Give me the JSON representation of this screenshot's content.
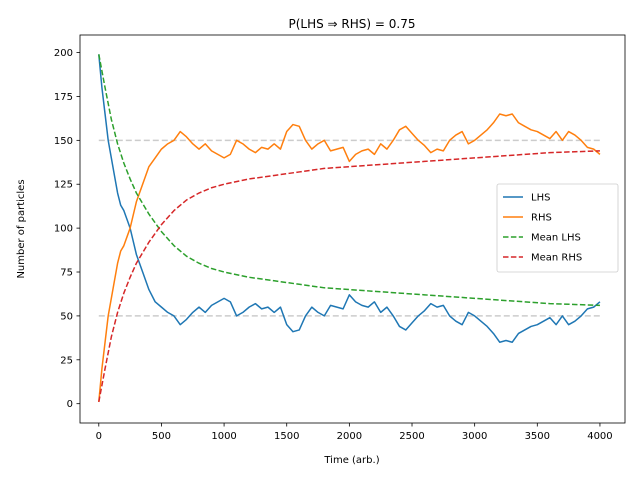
{
  "chart_data": {
    "type": "line",
    "title": "P(LHS ⇒ RHS) = 0.75",
    "xlabel": "Time (arb.)",
    "ylabel": "Number of particles",
    "xlim": [
      -150,
      4200
    ],
    "ylim": [
      -11,
      210
    ],
    "xticks": [
      0,
      500,
      1000,
      1500,
      2000,
      2500,
      3000,
      3500,
      4000
    ],
    "yticks": [
      0,
      25,
      50,
      75,
      100,
      125,
      150,
      175,
      200
    ],
    "grid": false,
    "legend_position": "center-right",
    "reference_lines": [
      {
        "y": 150,
        "x_range": [
          0,
          4000
        ],
        "color": "#cccccc",
        "style": "dashed"
      },
      {
        "y": 50,
        "x_range": [
          0,
          4000
        ],
        "color": "#cccccc",
        "style": "dashed"
      }
    ],
    "series": [
      {
        "name": "LHS",
        "color": "#1f77b4",
        "style": "solid",
        "x": [
          0,
          25,
          50,
          75,
          100,
          125,
          150,
          175,
          200,
          250,
          300,
          350,
          400,
          450,
          500,
          550,
          600,
          650,
          700,
          750,
          800,
          850,
          900,
          950,
          1000,
          1050,
          1100,
          1150,
          1200,
          1250,
          1300,
          1350,
          1400,
          1450,
          1500,
          1550,
          1600,
          1650,
          1700,
          1750,
          1800,
          1850,
          1900,
          1950,
          2000,
          2050,
          2100,
          2150,
          2200,
          2250,
          2300,
          2350,
          2400,
          2450,
          2500,
          2550,
          2600,
          2650,
          2700,
          2750,
          2800,
          2850,
          2900,
          2950,
          3000,
          3050,
          3100,
          3150,
          3200,
          3250,
          3300,
          3350,
          3400,
          3450,
          3500,
          3550,
          3600,
          3650,
          3700,
          3750,
          3800,
          3850,
          3900,
          3950,
          4000
        ],
        "values": [
          199,
          180,
          165,
          150,
          140,
          130,
          120,
          113,
          110,
          100,
          85,
          75,
          65,
          58,
          55,
          52,
          50,
          45,
          48,
          52,
          55,
          52,
          56,
          58,
          60,
          58,
          50,
          52,
          55,
          57,
          54,
          55,
          52,
          55,
          45,
          41,
          42,
          50,
          55,
          52,
          50,
          56,
          55,
          54,
          62,
          58,
          56,
          55,
          58,
          52,
          55,
          50,
          44,
          42,
          46,
          50,
          53,
          57,
          55,
          56,
          50,
          47,
          45,
          52,
          50,
          47,
          44,
          40,
          35,
          36,
          35,
          40,
          42,
          44,
          45,
          47,
          49,
          45,
          50,
          45,
          47,
          50,
          54,
          55,
          58
        ]
      },
      {
        "name": "RHS",
        "color": "#ff7f0e",
        "style": "solid",
        "x": [
          0,
          25,
          50,
          75,
          100,
          125,
          150,
          175,
          200,
          250,
          300,
          350,
          400,
          450,
          500,
          550,
          600,
          650,
          700,
          750,
          800,
          850,
          900,
          950,
          1000,
          1050,
          1100,
          1150,
          1200,
          1250,
          1300,
          1350,
          1400,
          1450,
          1500,
          1550,
          1600,
          1650,
          1700,
          1750,
          1800,
          1850,
          1900,
          1950,
          2000,
          2050,
          2100,
          2150,
          2200,
          2250,
          2300,
          2350,
          2400,
          2450,
          2500,
          2550,
          2600,
          2650,
          2700,
          2750,
          2800,
          2850,
          2900,
          2950,
          3000,
          3050,
          3100,
          3150,
          3200,
          3250,
          3300,
          3350,
          3400,
          3450,
          3500,
          3550,
          3600,
          3650,
          3700,
          3750,
          3800,
          3850,
          3900,
          3950,
          4000
        ],
        "values": [
          1,
          20,
          35,
          50,
          60,
          70,
          80,
          87,
          90,
          100,
          115,
          125,
          135,
          140,
          145,
          148,
          150,
          155,
          152,
          148,
          145,
          148,
          144,
          142,
          140,
          142,
          150,
          148,
          145,
          143,
          146,
          145,
          148,
          145,
          155,
          159,
          158,
          150,
          145,
          148,
          150,
          144,
          145,
          146,
          138,
          142,
          144,
          145,
          142,
          148,
          145,
          150,
          156,
          158,
          154,
          150,
          147,
          143,
          145,
          144,
          150,
          153,
          155,
          148,
          150,
          153,
          156,
          160,
          165,
          164,
          165,
          160,
          158,
          156,
          155,
          153,
          151,
          155,
          150,
          155,
          153,
          150,
          146,
          145,
          142
        ]
      },
      {
        "name": "Mean LHS",
        "color": "#2ca02c",
        "style": "dashed",
        "x": [
          0,
          50,
          100,
          150,
          200,
          250,
          300,
          400,
          500,
          600,
          700,
          800,
          900,
          1000,
          1200,
          1400,
          1600,
          1800,
          2000,
          2200,
          2400,
          2600,
          2800,
          3000,
          3200,
          3400,
          3600,
          3800,
          4000
        ],
        "values": [
          199,
          180,
          162,
          148,
          137,
          128,
          120,
          108,
          98,
          90,
          84,
          80,
          77,
          75,
          72,
          70,
          68,
          66,
          65,
          64,
          63,
          62,
          61,
          60,
          59,
          58,
          57,
          56.5,
          56
        ]
      },
      {
        "name": "Mean RHS",
        "color": "#d62728",
        "style": "dashed",
        "x": [
          0,
          50,
          100,
          150,
          200,
          250,
          300,
          400,
          500,
          600,
          700,
          800,
          900,
          1000,
          1200,
          1400,
          1600,
          1800,
          2000,
          2200,
          2400,
          2600,
          2800,
          3000,
          3200,
          3400,
          3600,
          3800,
          4000
        ],
        "values": [
          1,
          20,
          38,
          52,
          63,
          72,
          80,
          92,
          102,
          110,
          116,
          120,
          123,
          125,
          128,
          130,
          132,
          134,
          135,
          136,
          137,
          138,
          139,
          140,
          141,
          142,
          143,
          143.5,
          144
        ]
      }
    ]
  }
}
